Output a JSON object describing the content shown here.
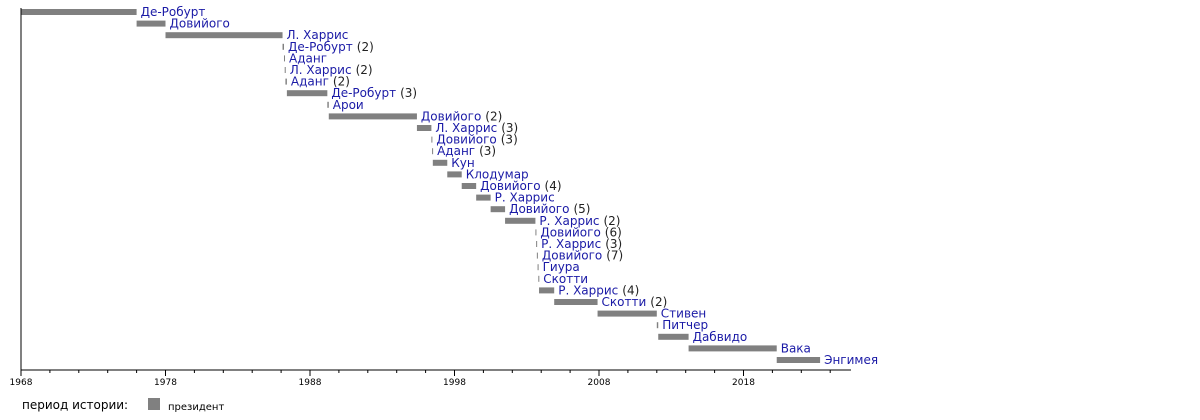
{
  "chart_data": {
    "type": "timeline",
    "x_axis": {
      "min": 1968,
      "max": 2025.5,
      "ticks": [
        1968,
        1978,
        1988,
        1998,
        2008,
        2018
      ]
    },
    "bar_color": "#808080",
    "name_color": "#1a1aa6",
    "legend": {
      "title": "период истории:",
      "items": [
        {
          "label": "президент",
          "color": "#808080"
        }
      ]
    },
    "entries": [
      {
        "name": "Де-Робурт",
        "term": "",
        "start": 1968.0,
        "end": 1976.0
      },
      {
        "name": "Довийого",
        "term": "",
        "start": 1976.0,
        "end": 1978.0
      },
      {
        "name": "Л. Харрис",
        "term": "",
        "start": 1978.0,
        "end": 1986.1
      },
      {
        "name": "Де-Робурт",
        "term": "(2)",
        "start": 1986.1,
        "end": 1986.2
      },
      {
        "name": "Аданг",
        "term": "",
        "start": 1986.2,
        "end": 1986.25
      },
      {
        "name": "Л. Харрис",
        "term": "(2)",
        "start": 1986.25,
        "end": 1986.3
      },
      {
        "name": "Аданг",
        "term": "(2)",
        "start": 1986.3,
        "end": 1986.4
      },
      {
        "name": "Де-Робурт",
        "term": "(3)",
        "start": 1986.4,
        "end": 1989.2
      },
      {
        "name": "Арои",
        "term": "",
        "start": 1989.2,
        "end": 1989.3
      },
      {
        "name": "Довийого",
        "term": "(2)",
        "start": 1989.3,
        "end": 1995.4
      },
      {
        "name": "Л. Харрис",
        "term": "(3)",
        "start": 1995.4,
        "end": 1996.4
      },
      {
        "name": "Довийого",
        "term": "(3)",
        "start": 1996.4,
        "end": 1996.45
      },
      {
        "name": "Аданг",
        "term": "(3)",
        "start": 1996.45,
        "end": 1996.5
      },
      {
        "name": "Кун",
        "term": "",
        "start": 1996.5,
        "end": 1997.5
      },
      {
        "name": "Клодумар",
        "term": "",
        "start": 1997.5,
        "end": 1998.5
      },
      {
        "name": "Довийого",
        "term": "(4)",
        "start": 1998.5,
        "end": 1999.5
      },
      {
        "name": "Р. Харрис",
        "term": "",
        "start": 1999.5,
        "end": 2000.5
      },
      {
        "name": "Довийого",
        "term": "(5)",
        "start": 2000.5,
        "end": 2001.5
      },
      {
        "name": "Р. Харрис",
        "term": "(2)",
        "start": 2001.5,
        "end": 2003.6
      },
      {
        "name": "Довийого",
        "term": "(6)",
        "start": 2003.6,
        "end": 2003.65
      },
      {
        "name": "Р. Харрис",
        "term": "(3)",
        "start": 2003.65,
        "end": 2003.7
      },
      {
        "name": "Довийого",
        "term": "(7)",
        "start": 2003.7,
        "end": 2003.75
      },
      {
        "name": "Гиура",
        "term": "",
        "start": 2003.75,
        "end": 2003.8
      },
      {
        "name": "Скотти",
        "term": "",
        "start": 2003.8,
        "end": 2003.85
      },
      {
        "name": "Р. Харрис",
        "term": "(4)",
        "start": 2003.85,
        "end": 2004.9
      },
      {
        "name": "Скотти",
        "term": "(2)",
        "start": 2004.9,
        "end": 2007.9
      },
      {
        "name": "Стивен",
        "term": "",
        "start": 2007.9,
        "end": 2012.0
      },
      {
        "name": "Питчер",
        "term": "",
        "start": 2012.0,
        "end": 2012.1
      },
      {
        "name": "Дабвидо",
        "term": "",
        "start": 2012.1,
        "end": 2014.2
      },
      {
        "name": "Вака",
        "term": "",
        "start": 2014.2,
        "end": 2020.3
      },
      {
        "name": "Энгимея",
        "term": "",
        "start": 2020.3,
        "end": 2023.3
      }
    ]
  }
}
